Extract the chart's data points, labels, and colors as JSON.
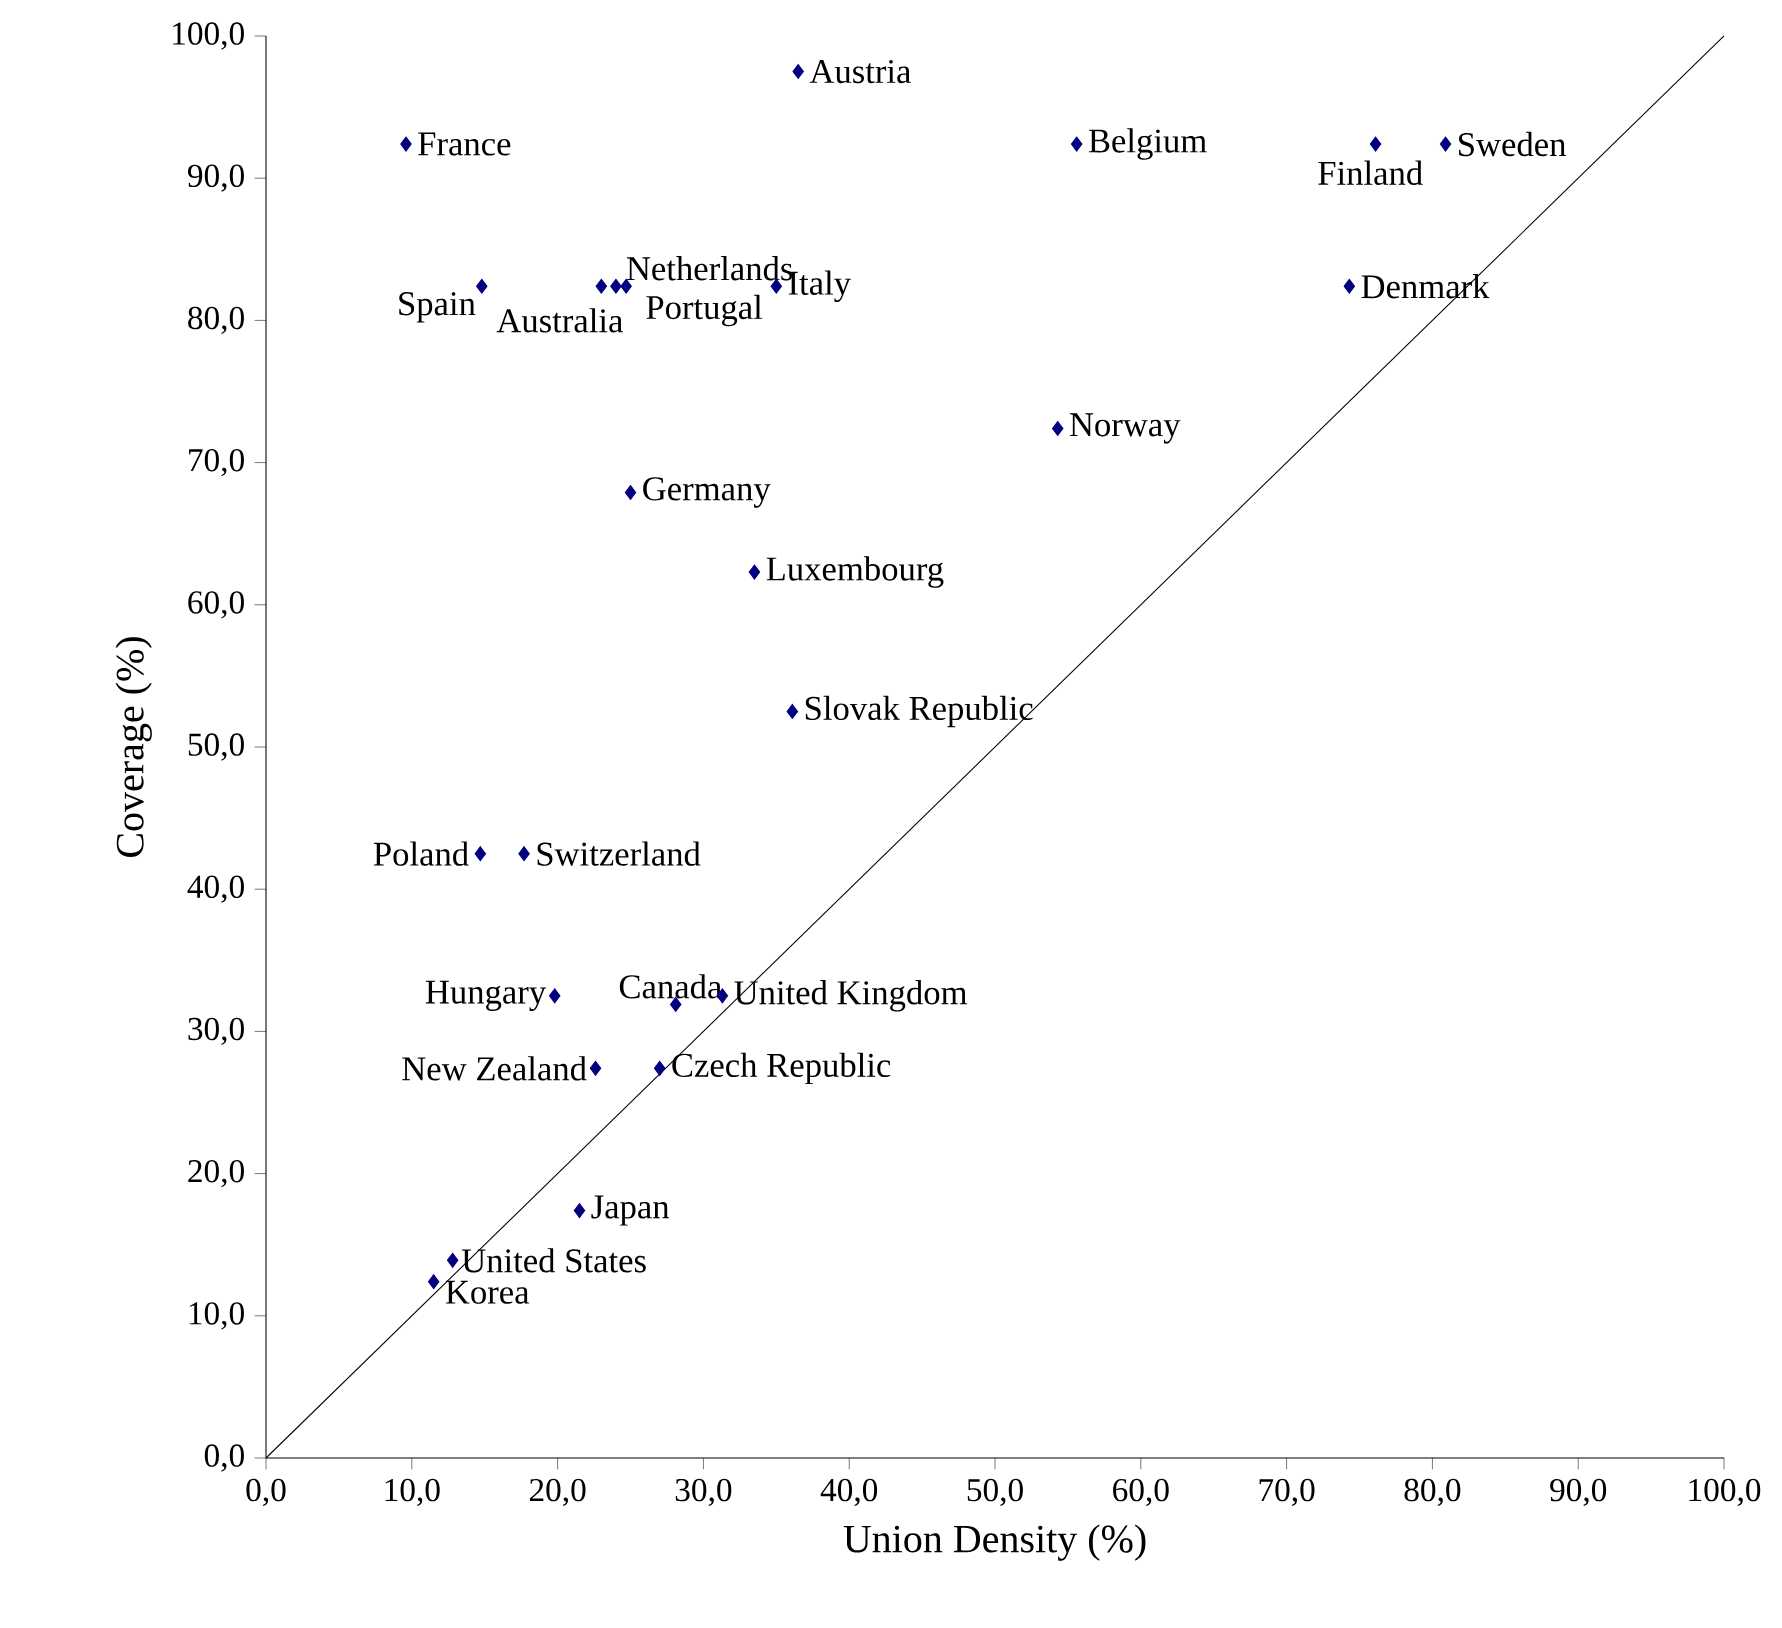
{
  "chart_data": {
    "type": "scatter",
    "xlabel": "Union Density (%)",
    "ylabel": "Coverage (%)",
    "xlim": [
      0,
      100
    ],
    "ylim": [
      0,
      100
    ],
    "xticks": [
      {
        "value": 0,
        "label": "0,0"
      },
      {
        "value": 10,
        "label": "10,0"
      },
      {
        "value": 20,
        "label": "20,0"
      },
      {
        "value": 30,
        "label": "30,0"
      },
      {
        "value": 40,
        "label": "40,0"
      },
      {
        "value": 50,
        "label": "50,0"
      },
      {
        "value": 60,
        "label": "60,0"
      },
      {
        "value": 70,
        "label": "70,0"
      },
      {
        "value": 80,
        "label": "80,0"
      },
      {
        "value": 90,
        "label": "90,0"
      },
      {
        "value": 100,
        "label": "100,0"
      }
    ],
    "yticks": [
      {
        "value": 0,
        "label": "0,0"
      },
      {
        "value": 10,
        "label": "10,0"
      },
      {
        "value": 20,
        "label": "20,0"
      },
      {
        "value": 30,
        "label": "30,0"
      },
      {
        "value": 40,
        "label": "40,0"
      },
      {
        "value": 50,
        "label": "50,0"
      },
      {
        "value": 60,
        "label": "60,0"
      },
      {
        "value": 70,
        "label": "70,0"
      },
      {
        "value": 80,
        "label": "80,0"
      },
      {
        "value": 90,
        "label": "90,0"
      },
      {
        "value": 100,
        "label": "100,0"
      }
    ],
    "grid": false,
    "marker": "diamond",
    "series": [
      {
        "color": "#000080",
        "x": [
          36.5,
          9.6,
          55.6,
          76.1,
          80.9,
          14.8,
          23.0,
          24.0,
          24.7,
          35.0,
          74.3,
          54.3,
          25.0,
          33.5,
          36.1,
          14.7,
          17.7,
          19.8,
          28.1,
          31.3,
          22.6,
          27.0,
          21.5,
          12.8,
          11.5
        ],
        "values": [
          97.5,
          92.4,
          92.4,
          92.4,
          92.4,
          82.4,
          82.4,
          82.4,
          82.4,
          82.4,
          82.4,
          72.4,
          67.9,
          62.3,
          52.5,
          42.5,
          42.5,
          32.5,
          31.9,
          32.5,
          27.4,
          27.4,
          17.4,
          13.9,
          12.4
        ]
      },
      {
        "type": "line",
        "marker": "none",
        "color": "#000000",
        "x": [
          0,
          100
        ],
        "values": [
          0,
          100
        ]
      }
    ],
    "annotations": [
      {
        "text": "Austria",
        "x": 36.5,
        "y": 97.5
      },
      {
        "text": "France",
        "x": 9.6,
        "y": 92.4
      },
      {
        "text": "Belgium",
        "x": 55.6,
        "y": 92.4
      },
      {
        "text": "Finland",
        "x": 76.1,
        "y": 92.4
      },
      {
        "text": "Sweden",
        "x": 80.9,
        "y": 92.4
      },
      {
        "text": "Spain",
        "x": 14.8,
        "y": 82.4
      },
      {
        "text": "Netherlands",
        "x": 23.0,
        "y": 82.4
      },
      {
        "text": "Australia",
        "x": 24.0,
        "y": 82.4
      },
      {
        "text": "Portugal",
        "x": 24.7,
        "y": 82.4
      },
      {
        "text": "Italy",
        "x": 35.0,
        "y": 82.4
      },
      {
        "text": "Denmark",
        "x": 74.3,
        "y": 82.4
      },
      {
        "text": "Norway",
        "x": 54.3,
        "y": 72.4
      },
      {
        "text": "Germany",
        "x": 25.0,
        "y": 67.9
      },
      {
        "text": "Luxembourg",
        "x": 33.5,
        "y": 62.3
      },
      {
        "text": "Slovak Republic",
        "x": 36.1,
        "y": 52.5
      },
      {
        "text": "Poland",
        "x": 14.7,
        "y": 42.5
      },
      {
        "text": "Switzerland",
        "x": 17.7,
        "y": 42.5
      },
      {
        "text": "Hungary",
        "x": 19.8,
        "y": 32.5
      },
      {
        "text": "Canada",
        "x": 28.1,
        "y": 31.9
      },
      {
        "text": "United Kingdom",
        "x": 31.3,
        "y": 32.5
      },
      {
        "text": "New Zealand",
        "x": 22.6,
        "y": 27.4
      },
      {
        "text": "Czech Republic",
        "x": 27.0,
        "y": 27.4
      },
      {
        "text": "Japan",
        "x": 21.5,
        "y": 17.4
      },
      {
        "text": "United States",
        "x": 12.8,
        "y": 13.9
      },
      {
        "text": "Korea",
        "x": 11.5,
        "y": 12.4
      }
    ]
  }
}
